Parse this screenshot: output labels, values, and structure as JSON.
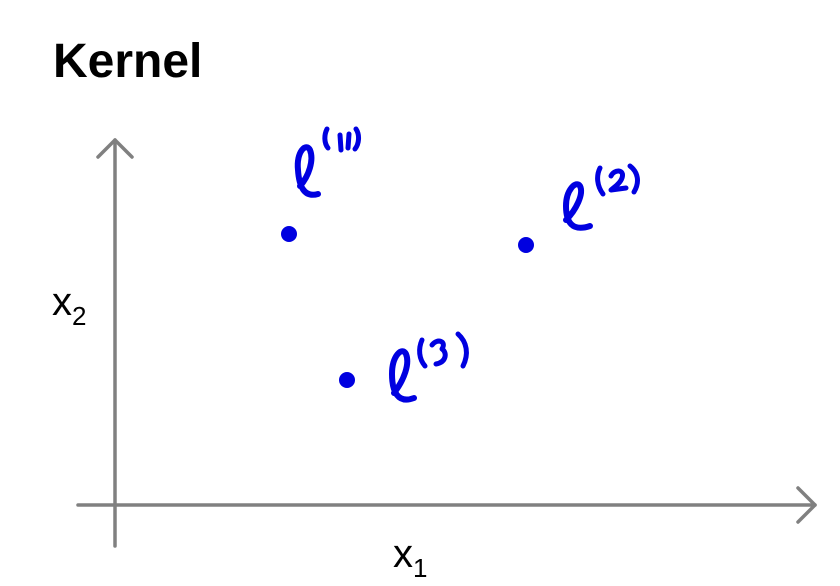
{
  "title": "Kernel",
  "axes": {
    "x": {
      "name": "x",
      "subscript": "1"
    },
    "y": {
      "name": "x",
      "subscript": "2"
    }
  },
  "landmarks": [
    {
      "symbol": "ℓ",
      "superscript": "(1)"
    },
    {
      "symbol": "ℓ",
      "superscript": "(2)"
    },
    {
      "symbol": "ℓ",
      "superscript": "(3)"
    }
  ],
  "colors": {
    "axis": "#808080",
    "ink": "#0000e0",
    "text": "#000000"
  }
}
